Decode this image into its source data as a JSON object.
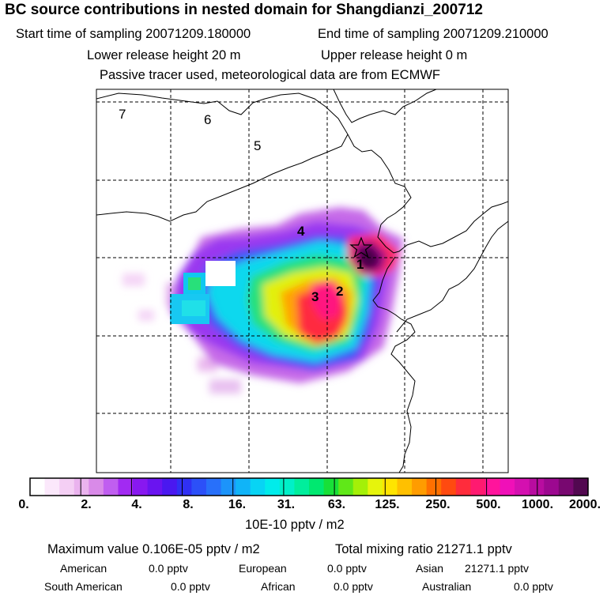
{
  "header": {
    "title": "BC  source contributions in nested domain for Shangdianzi_200712",
    "start_time": "Start time of sampling 20071209.180000",
    "end_time": "End time of sampling 20071209.210000",
    "lower_height": "Lower release height   20 m",
    "upper_height": "Upper release height    0 m",
    "tracer_note": "Passive tracer used, meteorological data are from ECMWF"
  },
  "map": {
    "region_labels": [
      "7",
      "6",
      "5",
      "4",
      "1",
      "2",
      "3"
    ],
    "station_marker": "star-icon"
  },
  "colorbar": {
    "tick_labels": [
      "0.",
      "2.",
      "4.",
      "8.",
      "16.",
      "31.",
      "63.",
      "125.",
      "250.",
      "500.",
      "1000.",
      "2000."
    ],
    "colors": [
      "#ffffff",
      "#fbe8fb",
      "#f4cff4",
      "#eab3ee",
      "#d98ae8",
      "#c05ef0",
      "#a22af2",
      "#8818f0",
      "#6a14f0",
      "#4a18f0",
      "#3030f4",
      "#2c50f8",
      "#2870fa",
      "#1c94fa",
      "#10b4f8",
      "#08d4f4",
      "#00eceb",
      "#00f0c8",
      "#00ee9c",
      "#00e870",
      "#18e038",
      "#60e818",
      "#a4f008",
      "#e6f40c",
      "#ffe400",
      "#ffc000",
      "#ff9c00",
      "#ff7000",
      "#ff4a10",
      "#ff2c3c",
      "#ff1a70",
      "#ff149c",
      "#f010b8",
      "#d410b0",
      "#b80ca0",
      "#9c0890",
      "#780870",
      "#520850"
    ],
    "unit": "10E-10 pptv / m2"
  },
  "stats": {
    "max_value": "Maximum value  0.106E-05 pptv / m2",
    "total_mixing": "Total mixing ratio    21271.1 pptv",
    "regions": [
      {
        "name": "American",
        "value": "0.0 pptv"
      },
      {
        "name": "European",
        "value": "0.0 pptv"
      },
      {
        "name": "Asian",
        "value": "21271.1 pptv"
      },
      {
        "name": "South American",
        "value": "0.0 pptv"
      },
      {
        "name": "African",
        "value": "0.0 pptv"
      },
      {
        "name": "Australian",
        "value": "0.0 pptv"
      }
    ]
  }
}
